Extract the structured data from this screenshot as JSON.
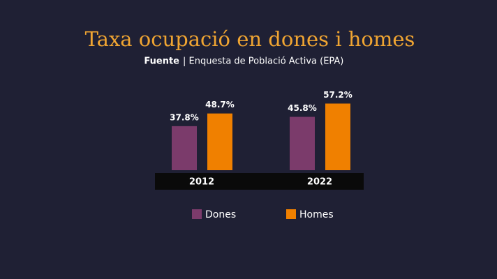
{
  "chart_data": {
    "type": "bar",
    "title": "Taxa ocupació en dones i homes",
    "subtitle_label": "Fuente",
    "subtitle": "| Enquesta de Població Activa (EPA)",
    "categories": [
      "2012",
      "2022"
    ],
    "series": [
      {
        "name": "Dones",
        "color": "#7b3b6b",
        "values": [
          37.8,
          45.8
        ],
        "value_labels": [
          "37.8%",
          "45.8%"
        ]
      },
      {
        "name": "Homes",
        "color": "#f08000",
        "values": [
          48.7,
          57.2
        ],
        "value_labels": [
          "48.7%",
          "57.2%"
        ]
      }
    ]
  }
}
